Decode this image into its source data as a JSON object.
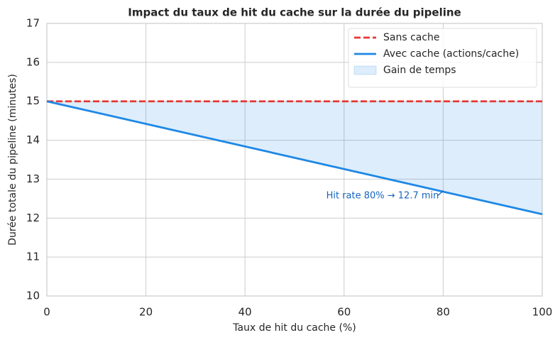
{
  "chart_data": {
    "type": "line",
    "title": "Impact du taux de hit du cache sur la durée du pipeline",
    "x_label": "Taux de hit du cache (%)",
    "y_label": "Durée totale du pipeline (minutes)",
    "x": [
      0,
      100
    ],
    "series": [
      {
        "name": "Sans cache",
        "color": "#e53935",
        "dashed": true,
        "values": [
          15,
          15
        ]
      },
      {
        "name": "Avec cache (actions/cache)",
        "color": "#1e88e5",
        "dashed": false,
        "values": [
          15,
          12.1
        ]
      }
    ],
    "fill_between": {
      "name": "Gain de temps",
      "color": "#1e88e5",
      "series": [
        0,
        1
      ]
    },
    "annotation": {
      "text": "Hit rate 80% → 12.7 min",
      "x": 80,
      "y": 12.7,
      "color": "#1565c0"
    },
    "xlim": [
      0,
      100
    ],
    "xticks": [
      0,
      20,
      40,
      60,
      80,
      100
    ],
    "ylim": [
      10,
      17
    ],
    "yticks": [
      10,
      11,
      12,
      13,
      14,
      15,
      16,
      17
    ],
    "grid": true,
    "legend": "upper right"
  }
}
